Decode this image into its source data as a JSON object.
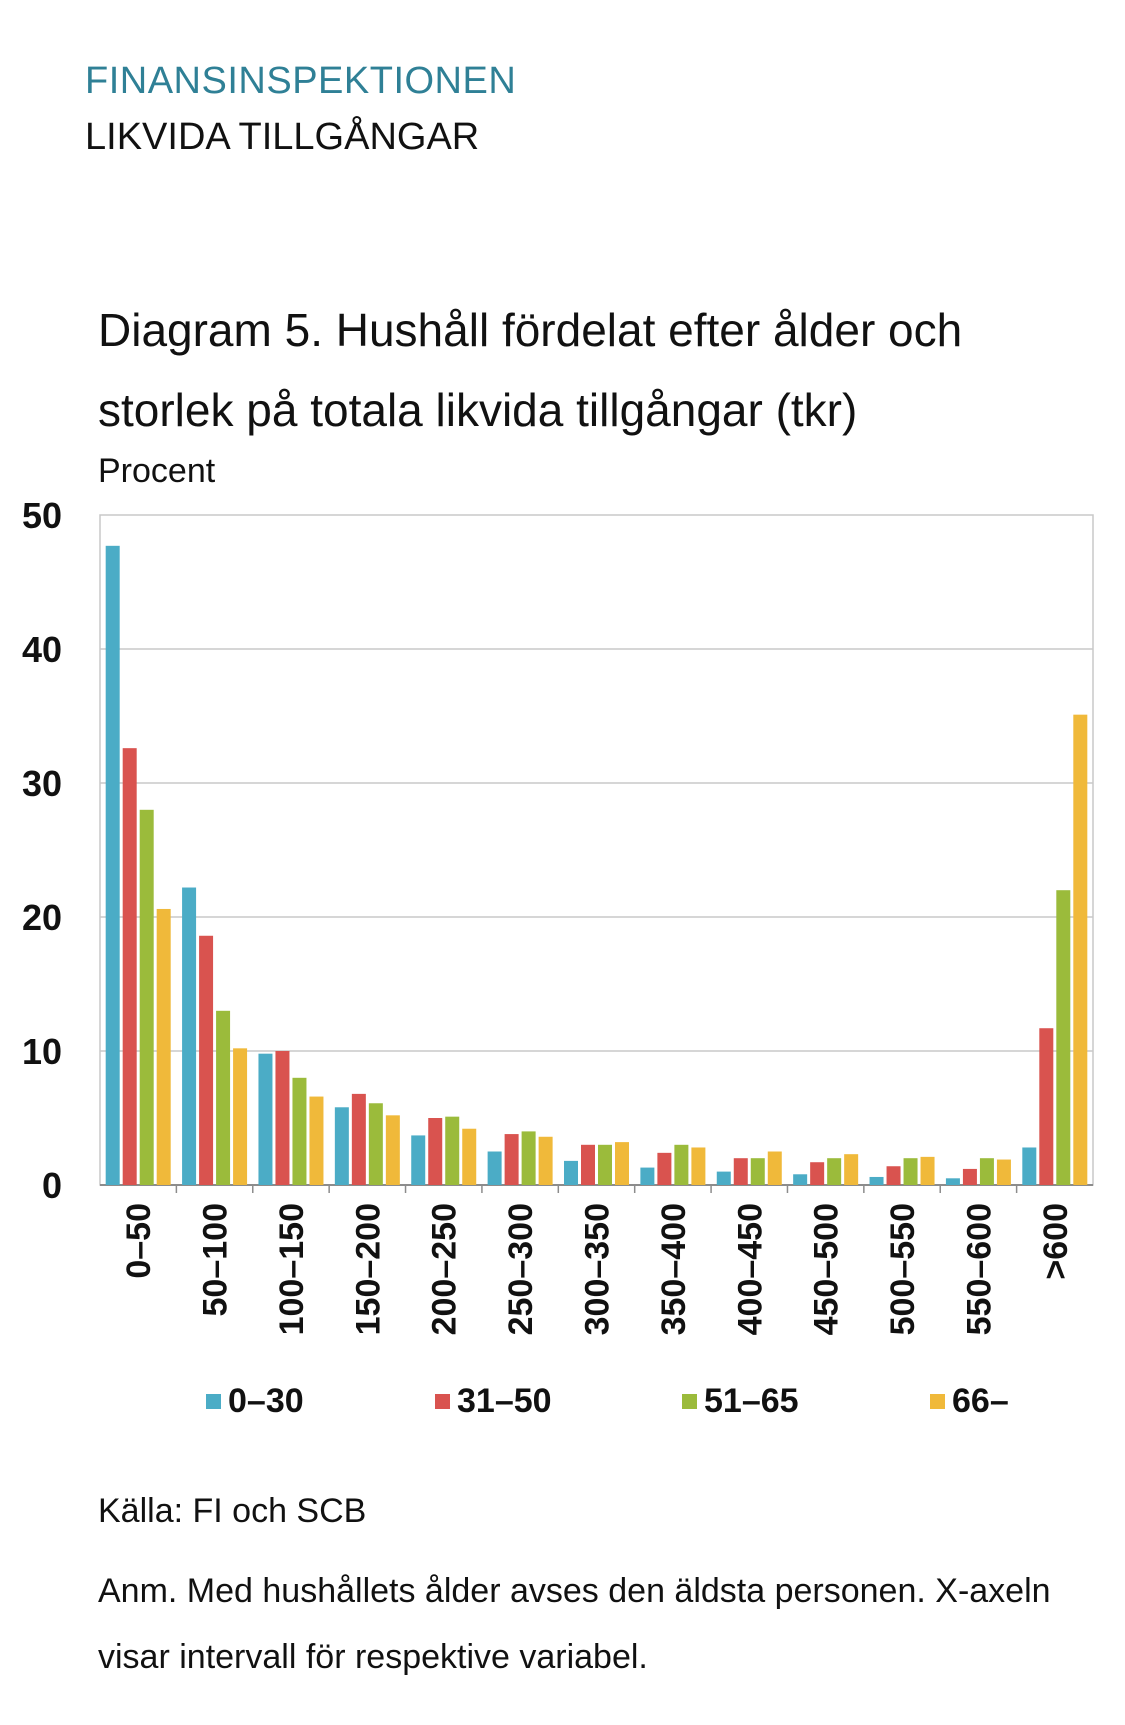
{
  "header": {
    "org": "FINANSINSPEKTIONEN",
    "section": "LIKVIDA TILLGÅNGAR"
  },
  "chart_title": "Diagram 5. Hushåll fördelat efter ålder och storlek på totala likvida tillgångar (tkr)",
  "y_unit": "Procent",
  "chart_data": {
    "type": "bar",
    "title": "Diagram 5. Hushåll fördelat efter ålder och storlek på totala likvida tillgångar (tkr)",
    "ylabel": "Procent",
    "xlabel": "",
    "ylim": [
      0,
      50
    ],
    "yticks": [
      0,
      10,
      20,
      30,
      40,
      50
    ],
    "grid": true,
    "legend_position": "bottom",
    "categories": [
      "0–50",
      "50–100",
      "100–150",
      "150–200",
      "200–250",
      "250–300",
      "300–350",
      "350–400",
      "400–450",
      "450–500",
      "500–550",
      "550–600",
      ">600"
    ],
    "series": [
      {
        "name": "0–30",
        "color": "#4BACC6",
        "values": [
          47.7,
          22.2,
          9.8,
          5.8,
          3.7,
          2.5,
          1.8,
          1.3,
          1.0,
          0.8,
          0.6,
          0.5,
          2.8
        ]
      },
      {
        "name": "31–50",
        "color": "#D9534F",
        "values": [
          32.6,
          18.6,
          10.0,
          6.8,
          5.0,
          3.8,
          3.0,
          2.4,
          2.0,
          1.7,
          1.4,
          1.2,
          11.7
        ]
      },
      {
        "name": "51–65",
        "color": "#9BBB3B",
        "values": [
          28.0,
          13.0,
          8.0,
          6.1,
          5.1,
          4.0,
          3.0,
          3.0,
          2.0,
          2.0,
          2.0,
          2.0,
          22.0
        ]
      },
      {
        "name": "66–",
        "color": "#F0B93A",
        "values": [
          20.6,
          10.2,
          6.6,
          5.2,
          4.2,
          3.6,
          3.2,
          2.8,
          2.5,
          2.3,
          2.1,
          1.9,
          35.1
        ]
      }
    ]
  },
  "footer": {
    "source": "Källa: FI och SCB",
    "note": "Anm. Med hushållets ålder avses den äldsta personen. X-axeln visar intervall för respektive variabel."
  }
}
